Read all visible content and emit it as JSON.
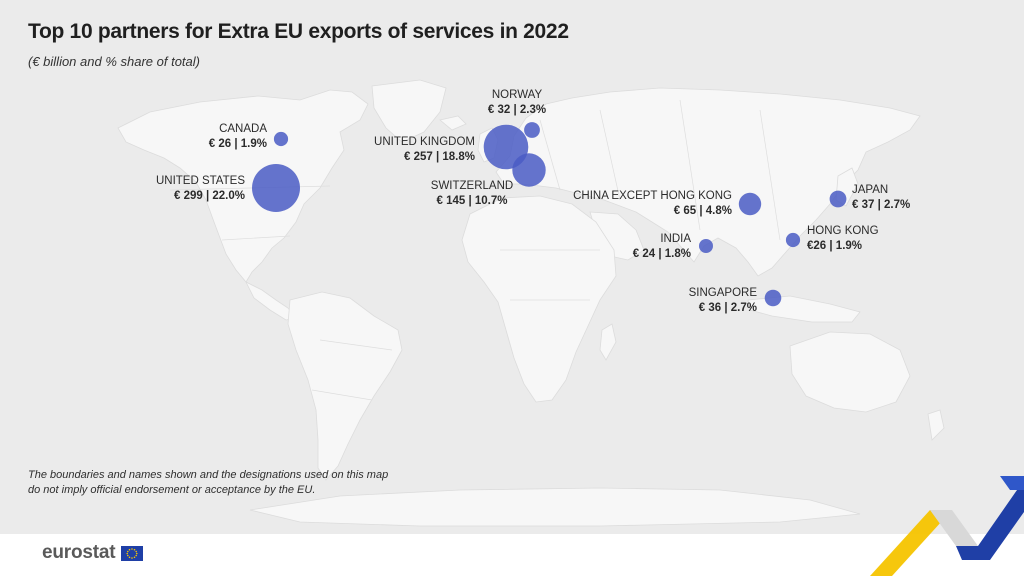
{
  "title": "Top 10 partners for Extra EU exports of services in 2022",
  "subtitle": "(€ billion and % share of total)",
  "disclaimer": [
    "The boundaries and names shown and the designations used on this map",
    "do not imply official endorsement or acceptance by the EU."
  ],
  "logo": {
    "text": "eurostat",
    "flag_icon": "eu-flag-icon"
  },
  "colors": {
    "bubble": "#4a5cc4",
    "land": "#f7f7f7",
    "background": "#ebebeb",
    "accent_blue": "#1f3fa6",
    "accent_yellow": "#f5c400"
  },
  "chart_data": {
    "type": "bubble-map",
    "title": "Top 10 partners for Extra EU exports of services in 2022",
    "subtitle": "(€ billion and % share of total)",
    "points": [
      {
        "name": "UNITED STATES",
        "label": "€ 299 | 22.0%",
        "value": 299,
        "share": 22.0
      },
      {
        "name": "UNITED KINGDOM",
        "label": "€ 257 | 18.8%",
        "value": 257,
        "share": 18.8
      },
      {
        "name": "SWITZERLAND",
        "label": "€ 145 | 10.7%",
        "value": 145,
        "share": 10.7
      },
      {
        "name": "CHINA EXCEPT HONG KONG",
        "label": "€ 65 | 4.8%",
        "value": 65,
        "share": 4.8
      },
      {
        "name": "JAPAN",
        "label": "€ 37 | 2.7%",
        "value": 37,
        "share": 2.7
      },
      {
        "name": "SINGAPORE",
        "label": "€ 36 | 2.7%",
        "value": 36,
        "share": 2.7
      },
      {
        "name": "NORWAY",
        "label": "€ 32 | 2.3%",
        "value": 32,
        "share": 2.3
      },
      {
        "name": "CANADA",
        "label": "€ 26 | 1.9%",
        "value": 26,
        "share": 1.9
      },
      {
        "name": "HONG KONG",
        "label": "€26 | 1.9%",
        "value": 26,
        "share": 1.9
      },
      {
        "name": "INDIA",
        "label": "€ 24 | 1.8%",
        "value": 24,
        "share": 1.8
      }
    ]
  }
}
